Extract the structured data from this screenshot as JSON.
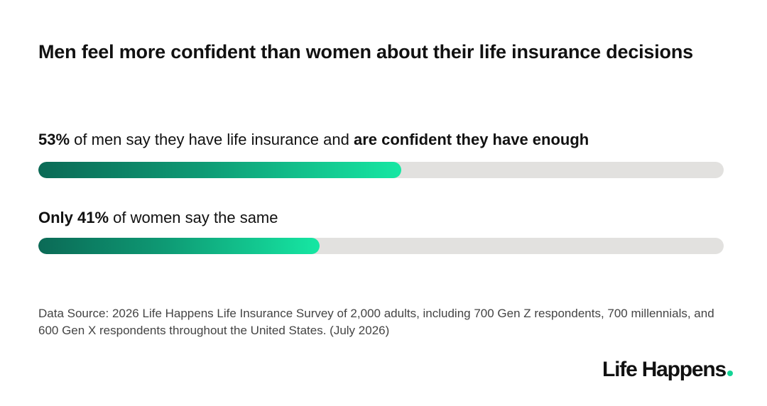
{
  "chart_data": {
    "type": "bar",
    "title": "Men feel more confident than women about their life insurance decisions",
    "xlim": [
      0,
      100
    ],
    "bars": [
      {
        "value": 53,
        "label_lead": "53%",
        "label_rest": " of men say they have life insurance and ",
        "label_emph": "are confident they have enough"
      },
      {
        "value": 41,
        "label_lead": "Only 41%",
        "label_rest": " of women say the same",
        "label_emph": ""
      }
    ],
    "source": "Data Source: 2026 Life Happens Life Insurance Survey of 2,000 adults, including 700 Gen Z respondents, 700 millennials, and 600 Gen X respondents throughout the United States. (July 2026)"
  },
  "brand": {
    "name": "Life Happens",
    "dot_color": "#14d496"
  },
  "colors": {
    "track": "#e2e1df",
    "fill_start": "#0b6a56",
    "fill_end": "#16e7a3"
  }
}
